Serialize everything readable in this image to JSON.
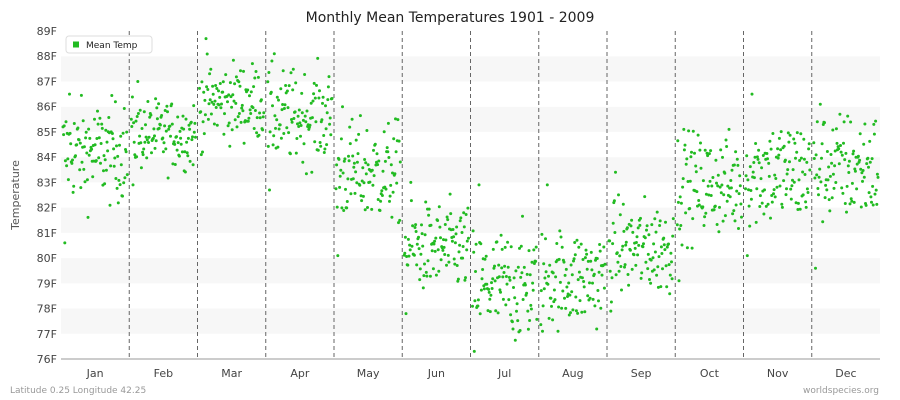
{
  "chart_data": {
    "type": "scatter",
    "title": "Monthly Mean Temperatures 1901 - 2009",
    "ylabel": "Temperature",
    "xlabel": "",
    "y_ticks": [
      "76F",
      "77F",
      "78F",
      "79F",
      "80F",
      "81F",
      "82F",
      "83F",
      "84F",
      "85F",
      "86F",
      "87F",
      "88F",
      "89F"
    ],
    "ylim": [
      76,
      89
    ],
    "months": [
      "Jan",
      "Feb",
      "Mar",
      "Apr",
      "May",
      "Jun",
      "Jul",
      "Aug",
      "Sep",
      "Oct",
      "Nov",
      "Dec"
    ],
    "grid": "horizontal bands, dashed vertical month dividers",
    "legend_position": "top-left",
    "series": [
      {
        "name": "Mean Temp",
        "color": "#22bb22",
        "note": "one point per year 1901-2009 for each month; typical range per month",
        "monthly_mean": [
          84.2,
          84.9,
          86.2,
          85.6,
          83.4,
          80.4,
          78.9,
          79.2,
          80.4,
          82.9,
          83.4,
          83.6
        ],
        "monthly_min": [
          80.6,
          82.9,
          84.1,
          82.7,
          80.1,
          77.8,
          76.3,
          77.1,
          77.9,
          79.1,
          80.1,
          79.6
        ],
        "monthly_max": [
          86.5,
          87.0,
          88.7,
          88.1,
          86.0,
          83.0,
          82.9,
          82.9,
          83.4,
          85.1,
          86.5,
          86.1
        ]
      }
    ]
  },
  "legend": {
    "label": "Mean Temp",
    "color": "#22bb22"
  },
  "footer": {
    "left": "Latitude 0.25 Longitude 42.25",
    "right": "worldspecies.org"
  },
  "colors": {
    "band_light": "#f7f7f7",
    "band_white": "#ffffff",
    "divider": "#666666"
  }
}
